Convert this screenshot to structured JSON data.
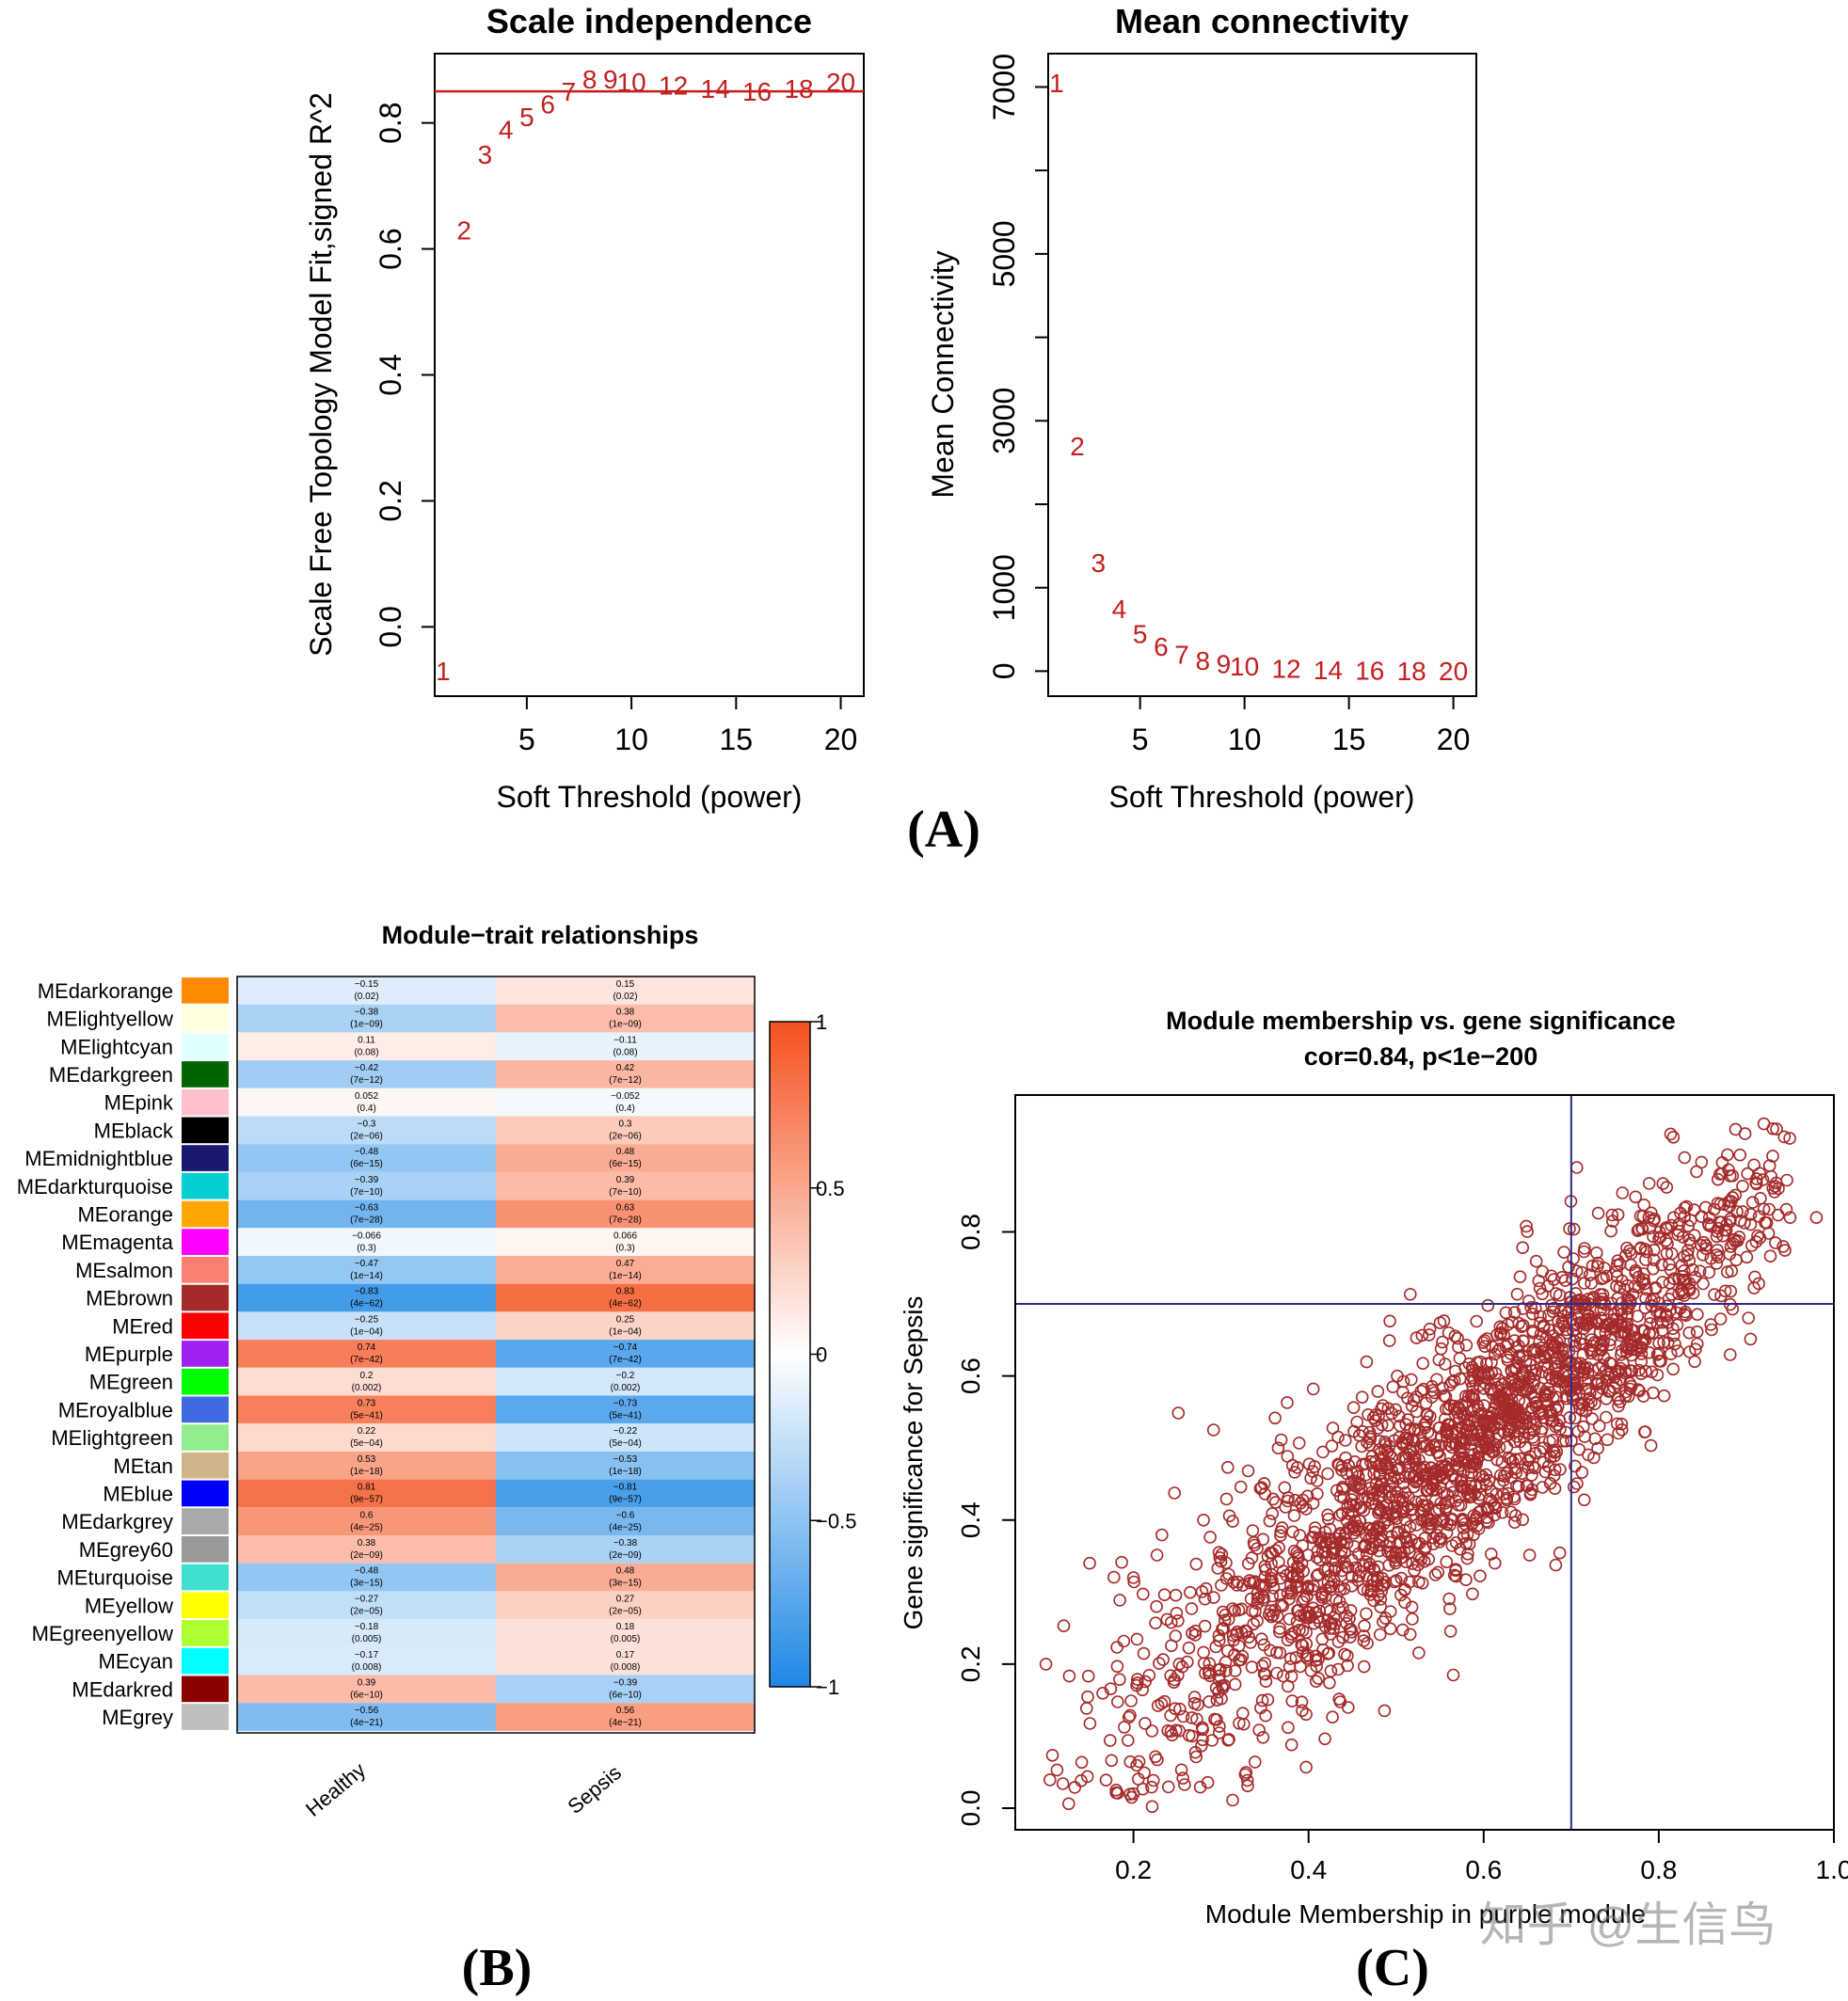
{
  "colors": {
    "mark": "#c41e1e",
    "refline": "#c41e1e",
    "frame": "#000000",
    "scatter": "#a52a2a",
    "crosshair": "#2b2b8a",
    "heat_low": "#1e88e5",
    "heat_mid": "#ffffff",
    "heat_high": "#f4511e"
  },
  "panels": {
    "a": "(A)",
    "b": "(B)",
    "c": "(C)"
  },
  "watermark": "知乎 @生信鸟",
  "chart_data": [
    {
      "id": "scale_independence",
      "type": "scatter",
      "title": "Scale independence",
      "xlabel": "Soft Threshold (power)",
      "ylabel": "Scale Free Topology Model Fit,signed R^2",
      "xlim": [
        0.6,
        21.1
      ],
      "ylim": [
        -0.11,
        0.91
      ],
      "xticks": [
        5,
        10,
        15,
        20
      ],
      "yticks": [
        0.0,
        0.2,
        0.4,
        0.6,
        0.8
      ],
      "reference_line_y": 0.85,
      "marker": "text-label",
      "points": [
        {
          "label": "1",
          "x": 1,
          "y": -0.07
        },
        {
          "label": "2",
          "x": 2,
          "y": 0.63
        },
        {
          "label": "3",
          "x": 3,
          "y": 0.75
        },
        {
          "label": "4",
          "x": 4,
          "y": 0.79
        },
        {
          "label": "5",
          "x": 5,
          "y": 0.81
        },
        {
          "label": "6",
          "x": 6,
          "y": 0.83
        },
        {
          "label": "7",
          "x": 7,
          "y": 0.85
        },
        {
          "label": "8",
          "x": 8,
          "y": 0.87
        },
        {
          "label": "9",
          "x": 9,
          "y": 0.87
        },
        {
          "label": "10",
          "x": 10,
          "y": 0.865
        },
        {
          "label": "12",
          "x": 12,
          "y": 0.86
        },
        {
          "label": "14",
          "x": 14,
          "y": 0.855
        },
        {
          "label": "16",
          "x": 16,
          "y": 0.85
        },
        {
          "label": "18",
          "x": 18,
          "y": 0.855
        },
        {
          "label": "20",
          "x": 20,
          "y": 0.865
        }
      ]
    },
    {
      "id": "mean_connectivity",
      "type": "scatter",
      "title": "Mean connectivity",
      "xlabel": "Soft Threshold (power)",
      "ylabel": "Mean Connectivity",
      "xlim": [
        0.6,
        21.1
      ],
      "ylim": [
        -300,
        7400
      ],
      "xticks": [
        5,
        10,
        15,
        20
      ],
      "yticks": [
        0,
        1000,
        3000,
        5000,
        7000
      ],
      "ytick_minor": [
        2000,
        4000,
        6000
      ],
      "marker": "text-label",
      "points": [
        {
          "label": "1",
          "x": 1,
          "y": 7050
        },
        {
          "label": "2",
          "x": 2,
          "y": 2700
        },
        {
          "label": "3",
          "x": 3,
          "y": 1300
        },
        {
          "label": "4",
          "x": 4,
          "y": 750
        },
        {
          "label": "5",
          "x": 5,
          "y": 450
        },
        {
          "label": "6",
          "x": 6,
          "y": 300
        },
        {
          "label": "7",
          "x": 7,
          "y": 200
        },
        {
          "label": "8",
          "x": 8,
          "y": 130
        },
        {
          "label": "9",
          "x": 9,
          "y": 90
        },
        {
          "label": "10",
          "x": 10,
          "y": 60
        },
        {
          "label": "12",
          "x": 12,
          "y": 30
        },
        {
          "label": "14",
          "x": 14,
          "y": 15
        },
        {
          "label": "16",
          "x": 16,
          "y": 8
        },
        {
          "label": "18",
          "x": 18,
          "y": 5
        },
        {
          "label": "20",
          "x": 20,
          "y": 3
        }
      ]
    },
    {
      "id": "module_trait",
      "type": "heatmap",
      "title": "Module−trait relationships",
      "columns": [
        "Healthy",
        "Sepsis"
      ],
      "colorbar": {
        "min": -1,
        "max": 1,
        "ticks": [
          1,
          0.5,
          0,
          -0.5,
          -1
        ],
        "tick_labels": [
          "1",
          "0.5",
          "0",
          "−0.5",
          "−1"
        ]
      },
      "rows": [
        {
          "name": "MEdarkorange",
          "swatch": "#ff8c00",
          "cells": [
            {
              "r": -0.15,
              "r_text": "−0.15",
              "p_text": "(0.02)"
            },
            {
              "r": 0.15,
              "r_text": "0.15",
              "p_text": "(0.02)"
            }
          ]
        },
        {
          "name": "MElightyellow",
          "swatch": "#ffffe0",
          "cells": [
            {
              "r": -0.38,
              "r_text": "−0.38",
              "p_text": "(1e−09)"
            },
            {
              "r": 0.38,
              "r_text": "0.38",
              "p_text": "(1e−09)"
            }
          ]
        },
        {
          "name": "MElightcyan",
          "swatch": "#e0ffff",
          "cells": [
            {
              "r": 0.11,
              "r_text": "0.11",
              "p_text": "(0.08)"
            },
            {
              "r": -0.11,
              "r_text": "−0.11",
              "p_text": "(0.08)"
            }
          ]
        },
        {
          "name": "MEdarkgreen",
          "swatch": "#006400",
          "cells": [
            {
              "r": -0.42,
              "r_text": "−0.42",
              "p_text": "(7e−12)"
            },
            {
              "r": 0.42,
              "r_text": "0.42",
              "p_text": "(7e−12)"
            }
          ]
        },
        {
          "name": "MEpink",
          "swatch": "#ffc0cb",
          "cells": [
            {
              "r": 0.052,
              "r_text": "0.052",
              "p_text": "(0.4)"
            },
            {
              "r": -0.052,
              "r_text": "−0.052",
              "p_text": "(0.4)"
            }
          ]
        },
        {
          "name": "MEblack",
          "swatch": "#000000",
          "cells": [
            {
              "r": -0.3,
              "r_text": "−0.3",
              "p_text": "(2e−06)"
            },
            {
              "r": 0.3,
              "r_text": "0.3",
              "p_text": "(2e−06)"
            }
          ]
        },
        {
          "name": "MEmidnightblue",
          "swatch": "#191970",
          "cells": [
            {
              "r": -0.48,
              "r_text": "−0.48",
              "p_text": "(6e−15)"
            },
            {
              "r": 0.48,
              "r_text": "0.48",
              "p_text": "(6e−15)"
            }
          ]
        },
        {
          "name": "MEdarkturquoise",
          "swatch": "#00ced1",
          "cells": [
            {
              "r": -0.39,
              "r_text": "−0.39",
              "p_text": "(7e−10)"
            },
            {
              "r": 0.39,
              "r_text": "0.39",
              "p_text": "(7e−10)"
            }
          ]
        },
        {
          "name": "MEorange",
          "swatch": "#ffa500",
          "cells": [
            {
              "r": -0.63,
              "r_text": "−0.63",
              "p_text": "(7e−28)"
            },
            {
              "r": 0.63,
              "r_text": "0.63",
              "p_text": "(7e−28)"
            }
          ]
        },
        {
          "name": "MEmagenta",
          "swatch": "#ff00ff",
          "cells": [
            {
              "r": -0.066,
              "r_text": "−0.066",
              "p_text": "(0.3)"
            },
            {
              "r": 0.066,
              "r_text": "0.066",
              "p_text": "(0.3)"
            }
          ]
        },
        {
          "name": "MEsalmon",
          "swatch": "#fa8072",
          "cells": [
            {
              "r": -0.47,
              "r_text": "−0.47",
              "p_text": "(1e−14)"
            },
            {
              "r": 0.47,
              "r_text": "0.47",
              "p_text": "(1e−14)"
            }
          ]
        },
        {
          "name": "MEbrown",
          "swatch": "#a52a2a",
          "cells": [
            {
              "r": -0.83,
              "r_text": "−0.83",
              "p_text": "(4e−62)"
            },
            {
              "r": 0.83,
              "r_text": "0.83",
              "p_text": "(4e−62)"
            }
          ]
        },
        {
          "name": "MEred",
          "swatch": "#ff0000",
          "cells": [
            {
              "r": -0.25,
              "r_text": "−0.25",
              "p_text": "(1e−04)"
            },
            {
              "r": 0.25,
              "r_text": "0.25",
              "p_text": "(1e−04)"
            }
          ]
        },
        {
          "name": "MEpurple",
          "swatch": "#a020f0",
          "cells": [
            {
              "r": 0.74,
              "r_text": "0.74",
              "p_text": "(7e−42)"
            },
            {
              "r": -0.74,
              "r_text": "−0.74",
              "p_text": "(7e−42)"
            }
          ]
        },
        {
          "name": "MEgreen",
          "swatch": "#00ff00",
          "cells": [
            {
              "r": 0.2,
              "r_text": "0.2",
              "p_text": "(0.002)"
            },
            {
              "r": -0.2,
              "r_text": "−0.2",
              "p_text": "(0.002)"
            }
          ]
        },
        {
          "name": "MEroyalblue",
          "swatch": "#4169e1",
          "cells": [
            {
              "r": 0.73,
              "r_text": "0.73",
              "p_text": "(5e−41)"
            },
            {
              "r": -0.73,
              "r_text": "−0.73",
              "p_text": "(5e−41)"
            }
          ]
        },
        {
          "name": "MElightgreen",
          "swatch": "#90ee90",
          "cells": [
            {
              "r": 0.22,
              "r_text": "0.22",
              "p_text": "(5e−04)"
            },
            {
              "r": -0.22,
              "r_text": "−0.22",
              "p_text": "(5e−04)"
            }
          ]
        },
        {
          "name": "MEtan",
          "swatch": "#d2b48c",
          "cells": [
            {
              "r": 0.53,
              "r_text": "0.53",
              "p_text": "(1e−18)"
            },
            {
              "r": -0.53,
              "r_text": "−0.53",
              "p_text": "(1e−18)"
            }
          ]
        },
        {
          "name": "MEblue",
          "swatch": "#0000ff",
          "cells": [
            {
              "r": 0.81,
              "r_text": "0.81",
              "p_text": "(9e−57)"
            },
            {
              "r": -0.81,
              "r_text": "−0.81",
              "p_text": "(9e−57)"
            }
          ]
        },
        {
          "name": "MEdarkgrey",
          "swatch": "#a9a9a9",
          "cells": [
            {
              "r": 0.6,
              "r_text": "0.6",
              "p_text": "(4e−25)"
            },
            {
              "r": -0.6,
              "r_text": "−0.6",
              "p_text": "(4e−25)"
            }
          ]
        },
        {
          "name": "MEgrey60",
          "swatch": "#999999",
          "cells": [
            {
              "r": 0.38,
              "r_text": "0.38",
              "p_text": "(2e−09)"
            },
            {
              "r": -0.38,
              "r_text": "−0.38",
              "p_text": "(2e−09)"
            }
          ]
        },
        {
          "name": "MEturquoise",
          "swatch": "#40e0d0",
          "cells": [
            {
              "r": -0.48,
              "r_text": "−0.48",
              "p_text": "(3e−15)"
            },
            {
              "r": 0.48,
              "r_text": "0.48",
              "p_text": "(3e−15)"
            }
          ]
        },
        {
          "name": "MEyellow",
          "swatch": "#ffff00",
          "cells": [
            {
              "r": -0.27,
              "r_text": "−0.27",
              "p_text": "(2e−05)"
            },
            {
              "r": 0.27,
              "r_text": "0.27",
              "p_text": "(2e−05)"
            }
          ]
        },
        {
          "name": "MEgreenyellow",
          "swatch": "#adff2f",
          "cells": [
            {
              "r": -0.18,
              "r_text": "−0.18",
              "p_text": "(0.005)"
            },
            {
              "r": 0.18,
              "r_text": "0.18",
              "p_text": "(0.005)"
            }
          ]
        },
        {
          "name": "MEcyan",
          "swatch": "#00ffff",
          "cells": [
            {
              "r": -0.17,
              "r_text": "−0.17",
              "p_text": "(0.008)"
            },
            {
              "r": 0.17,
              "r_text": "0.17",
              "p_text": "(0.008)"
            }
          ]
        },
        {
          "name": "MEdarkred",
          "swatch": "#8b0000",
          "cells": [
            {
              "r": 0.39,
              "r_text": "0.39",
              "p_text": "(6e−10)"
            },
            {
              "r": -0.39,
              "r_text": "−0.39",
              "p_text": "(6e−10)"
            }
          ]
        },
        {
          "name": "MEgrey",
          "swatch": "#bebebe",
          "cells": [
            {
              "r": -0.56,
              "r_text": "−0.56",
              "p_text": "(4e−21)"
            },
            {
              "r": 0.56,
              "r_text": "0.56",
              "p_text": "(4e−21)"
            }
          ]
        }
      ]
    },
    {
      "id": "mm_vs_gs",
      "type": "scatter",
      "title": "Module membership vs. gene significance",
      "subtitle": "cor=0.84, p<1e−200",
      "xlabel": "Module Membership in purple module",
      "ylabel": "Gene significance for Sepsis",
      "xlim": [
        0.065,
        1.0
      ],
      "ylim": [
        -0.03,
        0.99
      ],
      "xticks": [
        0.2,
        0.4,
        0.6,
        0.8,
        1.0
      ],
      "xtick_labels": [
        "0.2",
        "0.4",
        "0.6",
        "0.8",
        "1.0"
      ],
      "yticks": [
        0.0,
        0.2,
        0.4,
        0.6,
        0.8
      ],
      "ytick_labels": [
        "0.0",
        "0.2",
        "0.4",
        "0.6",
        "0.8"
      ],
      "crosshair": {
        "x": 0.7,
        "y": 0.7
      },
      "cor": 0.84,
      "n_genes": 2200,
      "marker": "open-circle",
      "trend": {
        "slope": 0.98,
        "intercept": -0.07,
        "noise_sd": 0.085
      },
      "x_distribution": {
        "center": 0.58,
        "spread": 0.19,
        "min": 0.1,
        "max": 0.95
      },
      "sample_points": [
        {
          "x": 0.1,
          "y": 0.2
        },
        {
          "x": 0.15,
          "y": 0.34
        },
        {
          "x": 0.2,
          "y": 0.02
        },
        {
          "x": 0.2,
          "y": 0.32
        },
        {
          "x": 0.28,
          "y": 0.4
        },
        {
          "x": 0.56,
          "y": 0.66
        },
        {
          "x": 0.92,
          "y": 0.95
        },
        {
          "x": 0.95,
          "y": 0.82
        },
        {
          "x": 0.98,
          "y": 0.82
        }
      ]
    }
  ]
}
